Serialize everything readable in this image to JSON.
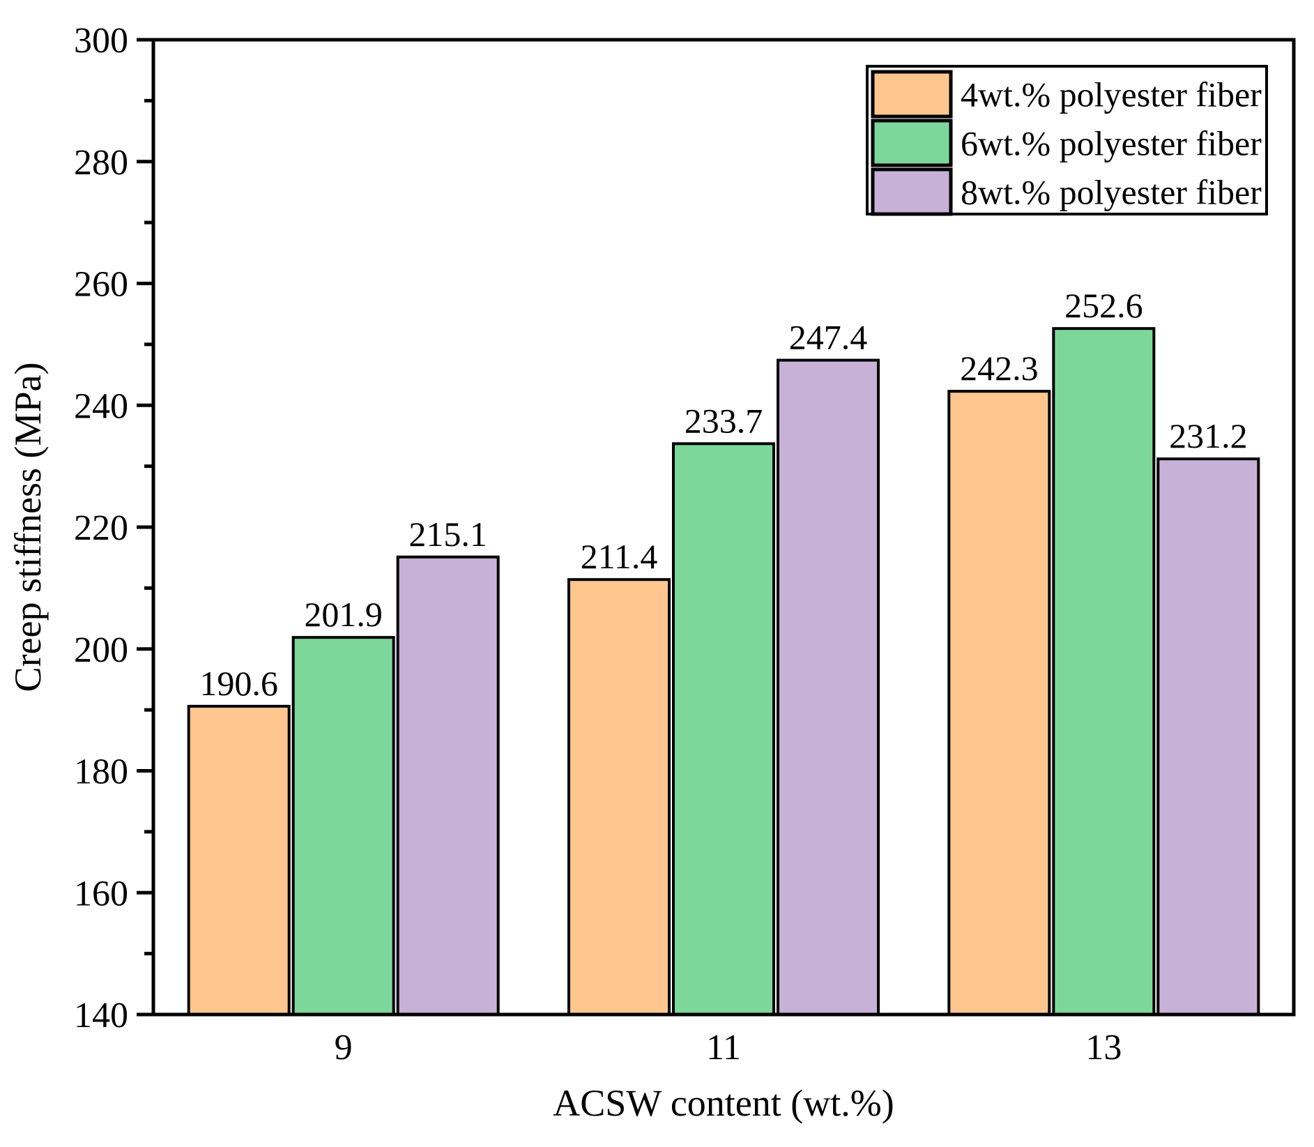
{
  "chart_data": {
    "type": "bar",
    "title": "",
    "xlabel": "ACSW content (wt.%)",
    "ylabel": "Creep stiffness (MPa)",
    "categories": [
      "9",
      "11",
      "13"
    ],
    "series": [
      {
        "name": "4wt.% polyester fiber",
        "color": "#FDC78F",
        "values": [
          190.6,
          211.4,
          242.3
        ]
      },
      {
        "name": "6wt.% polyester fiber",
        "color": "#7DD79B",
        "values": [
          201.9,
          233.7,
          252.6
        ]
      },
      {
        "name": "8wt.% polyester fiber",
        "color": "#C7B1D7",
        "values": [
          215.1,
          247.4,
          231.2
        ]
      }
    ],
    "ylim": [
      140,
      300
    ],
    "ytick_step": 20,
    "yminor_step": 10,
    "bar_value_labels": true,
    "grid": "off",
    "legend_position": "top-right",
    "frame_color": "#000000",
    "bar_edge_color": "#000000"
  }
}
